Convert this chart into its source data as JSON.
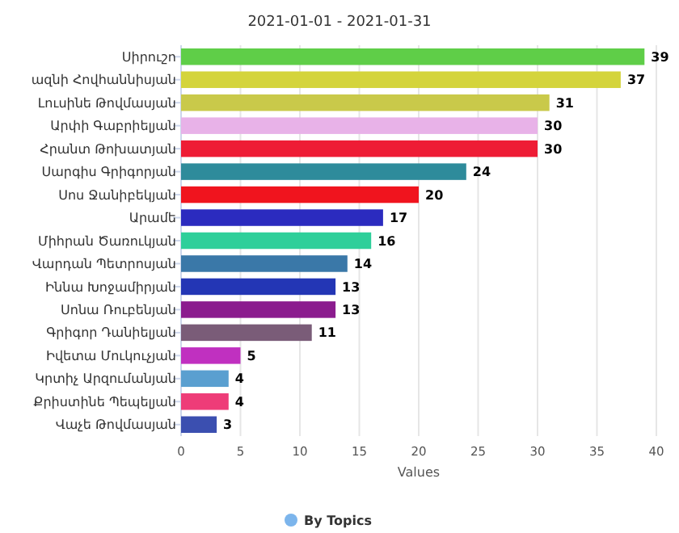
{
  "chart_data": {
    "type": "bar",
    "orientation": "horizontal",
    "title": "2021-01-01 - 2021-01-31",
    "xlabel": "Values",
    "categories": [
      "Սիրուշո",
      "ազնի Հովհաննիսյան",
      "Լուսինե Թովմասյան",
      "Արփի Գաբրիելյան",
      "Հրանտ Թոխատյան",
      "Սարգիս Գրիգորյան",
      "Սոս Ջանիբեկյան",
      "Արամե",
      "Միհրան Ծառուկյան",
      "Վարդան Պետրոսյան",
      "Իննա Խոջամիրյան",
      "Սոնա Ռուբենյան",
      "Գրիգոր Դանիելյան",
      "Իվետա Մուկուչյան",
      "Կրտիչ Արզումանյան",
      "Քրիստինե Պեպելյան",
      "Վաչե Թովմասյան"
    ],
    "series": [
      {
        "name": "By Topics",
        "color": "#7cb5ec",
        "values": [
          39,
          37,
          31,
          30,
          30,
          24,
          20,
          17,
          16,
          14,
          13,
          13,
          11,
          5,
          4,
          4,
          3
        ],
        "colors": [
          "#5fce48",
          "#d4d43c",
          "#c9c94a",
          "#e8b2e8",
          "#ee1c35",
          "#2e8b9b",
          "#f0141e",
          "#2b2bbf",
          "#2ecf9a",
          "#3a78a8",
          "#2336b5",
          "#8b1c8e",
          "#7a5c78",
          "#c030c0",
          "#5a9fd0",
          "#ee3c78",
          "#3b4fb0"
        ]
      }
    ],
    "xlim": [
      0,
      40
    ],
    "xticks": [
      0,
      5,
      10,
      15,
      20,
      25,
      30,
      35,
      40
    ],
    "grid": "x",
    "data_labels": true,
    "legend": "bottom"
  }
}
